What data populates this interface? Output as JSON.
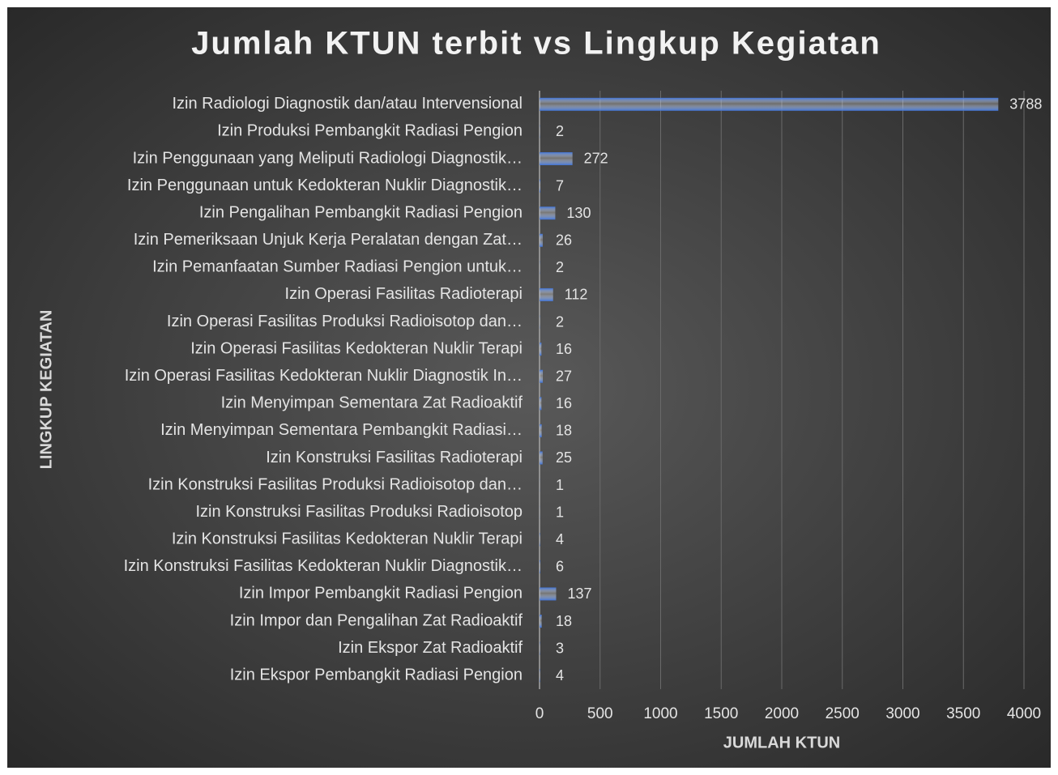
{
  "chart_data": {
    "type": "bar",
    "orientation": "horizontal",
    "title": "Jumlah KTUN terbit vs Lingkup Kegiatan",
    "xlabel": "JUMLAH KTUN",
    "ylabel": "LINGKUP KEGIATAN",
    "categories": [
      "Izin Radiologi Diagnostik dan/atau Intervensional",
      "Izin Produksi Pembangkit Radiasi Pengion",
      "Izin Penggunaan yang Meliputi Radiologi Diagnostik…",
      "Izin Penggunaan untuk Kedokteran Nuklir Diagnostik…",
      "Izin Pengalihan Pembangkit Radiasi Pengion",
      "Izin Pemeriksaan Unjuk Kerja Peralatan dengan Zat…",
      "Izin Pemanfaatan Sumber Radiasi Pengion untuk…",
      "Izin Operasi Fasilitas Radioterapi",
      "Izin Operasi Fasilitas Produksi Radioisotop dan…",
      "Izin Operasi Fasilitas Kedokteran Nuklir Terapi",
      "Izin Operasi Fasilitas Kedokteran Nuklir Diagnostik In…",
      "Izin Menyimpan Sementara Zat Radioaktif",
      "Izin Menyimpan Sementara Pembangkit Radiasi…",
      "Izin Konstruksi Fasilitas Radioterapi",
      "Izin Konstruksi Fasilitas Produksi Radioisotop dan…",
      "Izin Konstruksi Fasilitas Produksi Radioisotop",
      "Izin Konstruksi Fasilitas Kedokteran Nuklir Terapi",
      "Izin Konstruksi Fasilitas Kedokteran Nuklir Diagnostik…",
      "Izin Impor Pembangkit Radiasi Pengion",
      "Izin Impor dan Pengalihan Zat Radioaktif",
      "Izin Ekspor Zat Radioaktif",
      "Izin Ekspor Pembangkit Radiasi Pengion"
    ],
    "values": [
      3788,
      2,
      272,
      7,
      130,
      26,
      2,
      112,
      2,
      16,
      27,
      16,
      18,
      25,
      1,
      1,
      4,
      6,
      137,
      18,
      3,
      4
    ],
    "color": "#3f72d4",
    "xlim": [
      0,
      4000
    ],
    "xticks": [
      0,
      500,
      1000,
      1500,
      2000,
      2500,
      3000,
      3500,
      4000
    ],
    "grid": true
  }
}
